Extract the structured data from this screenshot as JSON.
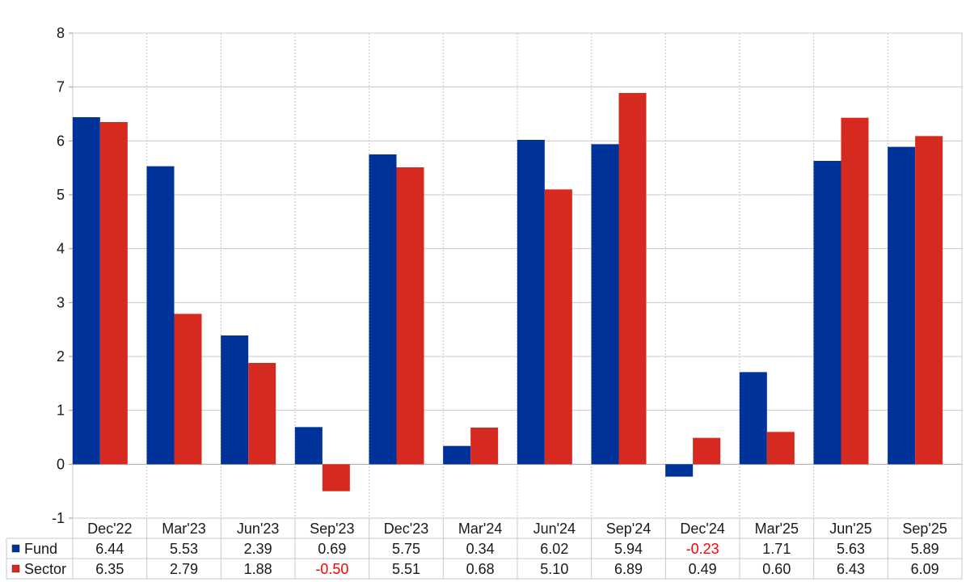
{
  "colors": {
    "fund": "#003399",
    "sector": "#d62a20",
    "negative_text": "#ff0000",
    "grid": "#c8c8c8",
    "axis": "#999999"
  },
  "chart_data": {
    "type": "bar",
    "categories": [
      "Dec'22",
      "Mar'23",
      "Jun'23",
      "Sep'23",
      "Dec'23",
      "Mar'24",
      "Jun'24",
      "Sep'24",
      "Dec'24",
      "Mar'25",
      "Jun'25",
      "Sep'25"
    ],
    "series": [
      {
        "name": "Fund",
        "color": "#003399",
        "values": [
          6.44,
          5.53,
          2.39,
          0.69,
          5.75,
          0.34,
          6.02,
          5.94,
          -0.23,
          1.71,
          5.63,
          5.89
        ],
        "labels": [
          "6.44",
          "5.53",
          "2.39",
          "0.69",
          "5.75",
          "0.34",
          "6.02",
          "5.94",
          "-0.23",
          "1.71",
          "5.63",
          "5.89"
        ]
      },
      {
        "name": "Sector",
        "color": "#d62a20",
        "values": [
          6.35,
          2.79,
          1.88,
          -0.5,
          5.51,
          0.68,
          5.1,
          6.89,
          0.49,
          0.6,
          6.43,
          6.09
        ],
        "labels": [
          "6.35",
          "2.79",
          "1.88",
          "-0.50",
          "5.51",
          "0.68",
          "5.10",
          "6.89",
          "0.49",
          "0.60",
          "6.43",
          "6.09"
        ]
      }
    ],
    "ylim": [
      -1,
      8
    ],
    "yticks": [
      "8",
      "7",
      "6",
      "5",
      "4",
      "3",
      "2",
      "1",
      "0",
      "-1"
    ],
    "ytick_values": [
      8,
      7,
      6,
      5,
      4,
      3,
      2,
      1,
      0,
      -1
    ],
    "grid": true,
    "legend": "table-below",
    "title": "",
    "xlabel": "",
    "ylabel": ""
  }
}
